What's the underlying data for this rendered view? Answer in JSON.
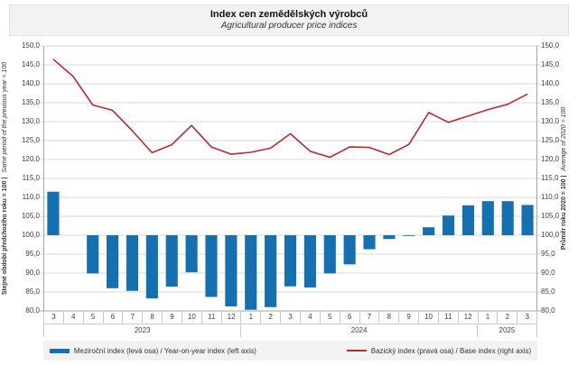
{
  "title": {
    "cs": "Index cen zemědělských výrobců",
    "en": "Agricultural producer price indices"
  },
  "axes": {
    "left_title_cs": "Stejné období předchozího roku = 100 |",
    "left_title_en": "Same period of the previous year = 100",
    "right_title_cs": "Průměr roku 2020 = 100 |",
    "right_title_en": "Average of 2020 = 100"
  },
  "legend": [
    {
      "marker": "bar",
      "color": "#1470b0",
      "label": "Meziroční index (levá osa) / Year-on-year index (left axis)"
    },
    {
      "marker": "line",
      "color": "#c0272b",
      "label": "Bazický index (pravá osa) / Base index (right axis)"
    }
  ],
  "colors": {
    "bar": "#1470b0",
    "line": "#c0272b",
    "grid": "#d9d9d9",
    "axis": "#a6a6a6",
    "band": "#f2f2f2"
  },
  "chart_data": {
    "type": "bar+line combo, dual axis",
    "title": "Index cen zemědělských výrobců / Agricultural producer price indices",
    "ylim": [
      80,
      150
    ],
    "ytick_step": 5,
    "tick_format": "comma-decimal, one decimal place",
    "grid": true,
    "legend_position": "bottom",
    "x_months": [
      "3",
      "4",
      "5",
      "6",
      "7",
      "8",
      "9",
      "10",
      "11",
      "12",
      "1",
      "2",
      "3",
      "4",
      "5",
      "6",
      "7",
      "8",
      "9",
      "10",
      "11",
      "12",
      "1",
      "2",
      "3"
    ],
    "year_groups": [
      {
        "year": "2023",
        "count": 10
      },
      {
        "year": "2024",
        "count": 12
      },
      {
        "year": "2025",
        "count": 3
      }
    ],
    "series": [
      {
        "name": "Meziroční index / Year-on-year index",
        "type": "bar",
        "axis": "left",
        "baseline": 100,
        "color": "#1470b0",
        "values": [
          111.5,
          100.0,
          89.9,
          86.0,
          85.3,
          83.3,
          86.4,
          90.2,
          83.7,
          81.2,
          80.3,
          81.0,
          86.5,
          86.2,
          89.9,
          92.3,
          96.3,
          99.0,
          99.8,
          102.1,
          105.2,
          107.9,
          109.0,
          109.0,
          108.0
        ]
      },
      {
        "name": "Bazický index / Base index",
        "type": "line",
        "axis": "right",
        "color": "#c0272b",
        "values": [
          146.5,
          142.0,
          134.4,
          133.0,
          127.6,
          121.8,
          123.9,
          129.0,
          123.3,
          121.4,
          121.9,
          123.0,
          126.8,
          122.2,
          120.6,
          123.3,
          123.2,
          121.3,
          124.0,
          132.4,
          129.8,
          131.5,
          133.2,
          134.6,
          137.3
        ]
      }
    ]
  }
}
